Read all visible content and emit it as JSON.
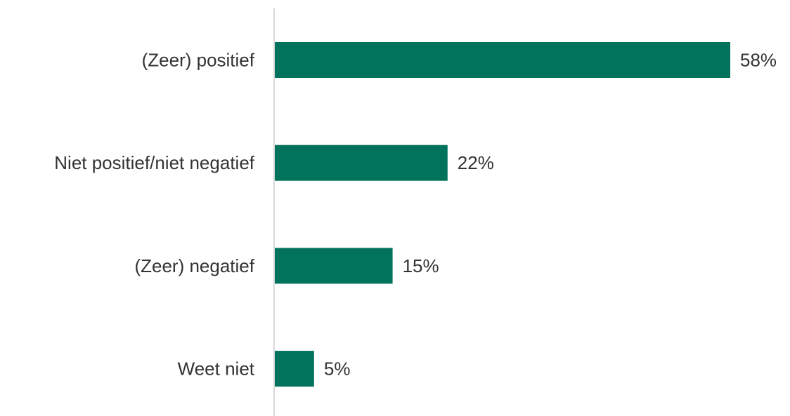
{
  "chart_data": {
    "type": "bar",
    "orientation": "horizontal",
    "categories": [
      "(Zeer) positief",
      "Niet positief/niet negatief",
      "(Zeer) negatief",
      "Weet niet"
    ],
    "values": [
      58,
      22,
      15,
      5
    ],
    "value_labels": [
      "58%",
      "22%",
      "15%",
      "5%"
    ],
    "unit": "%",
    "bar_color": "#01725C",
    "axis_color": "#D9D9D9",
    "text_color": "#333333",
    "xlim": [
      0,
      58
    ],
    "grid": false,
    "legend": "none"
  }
}
